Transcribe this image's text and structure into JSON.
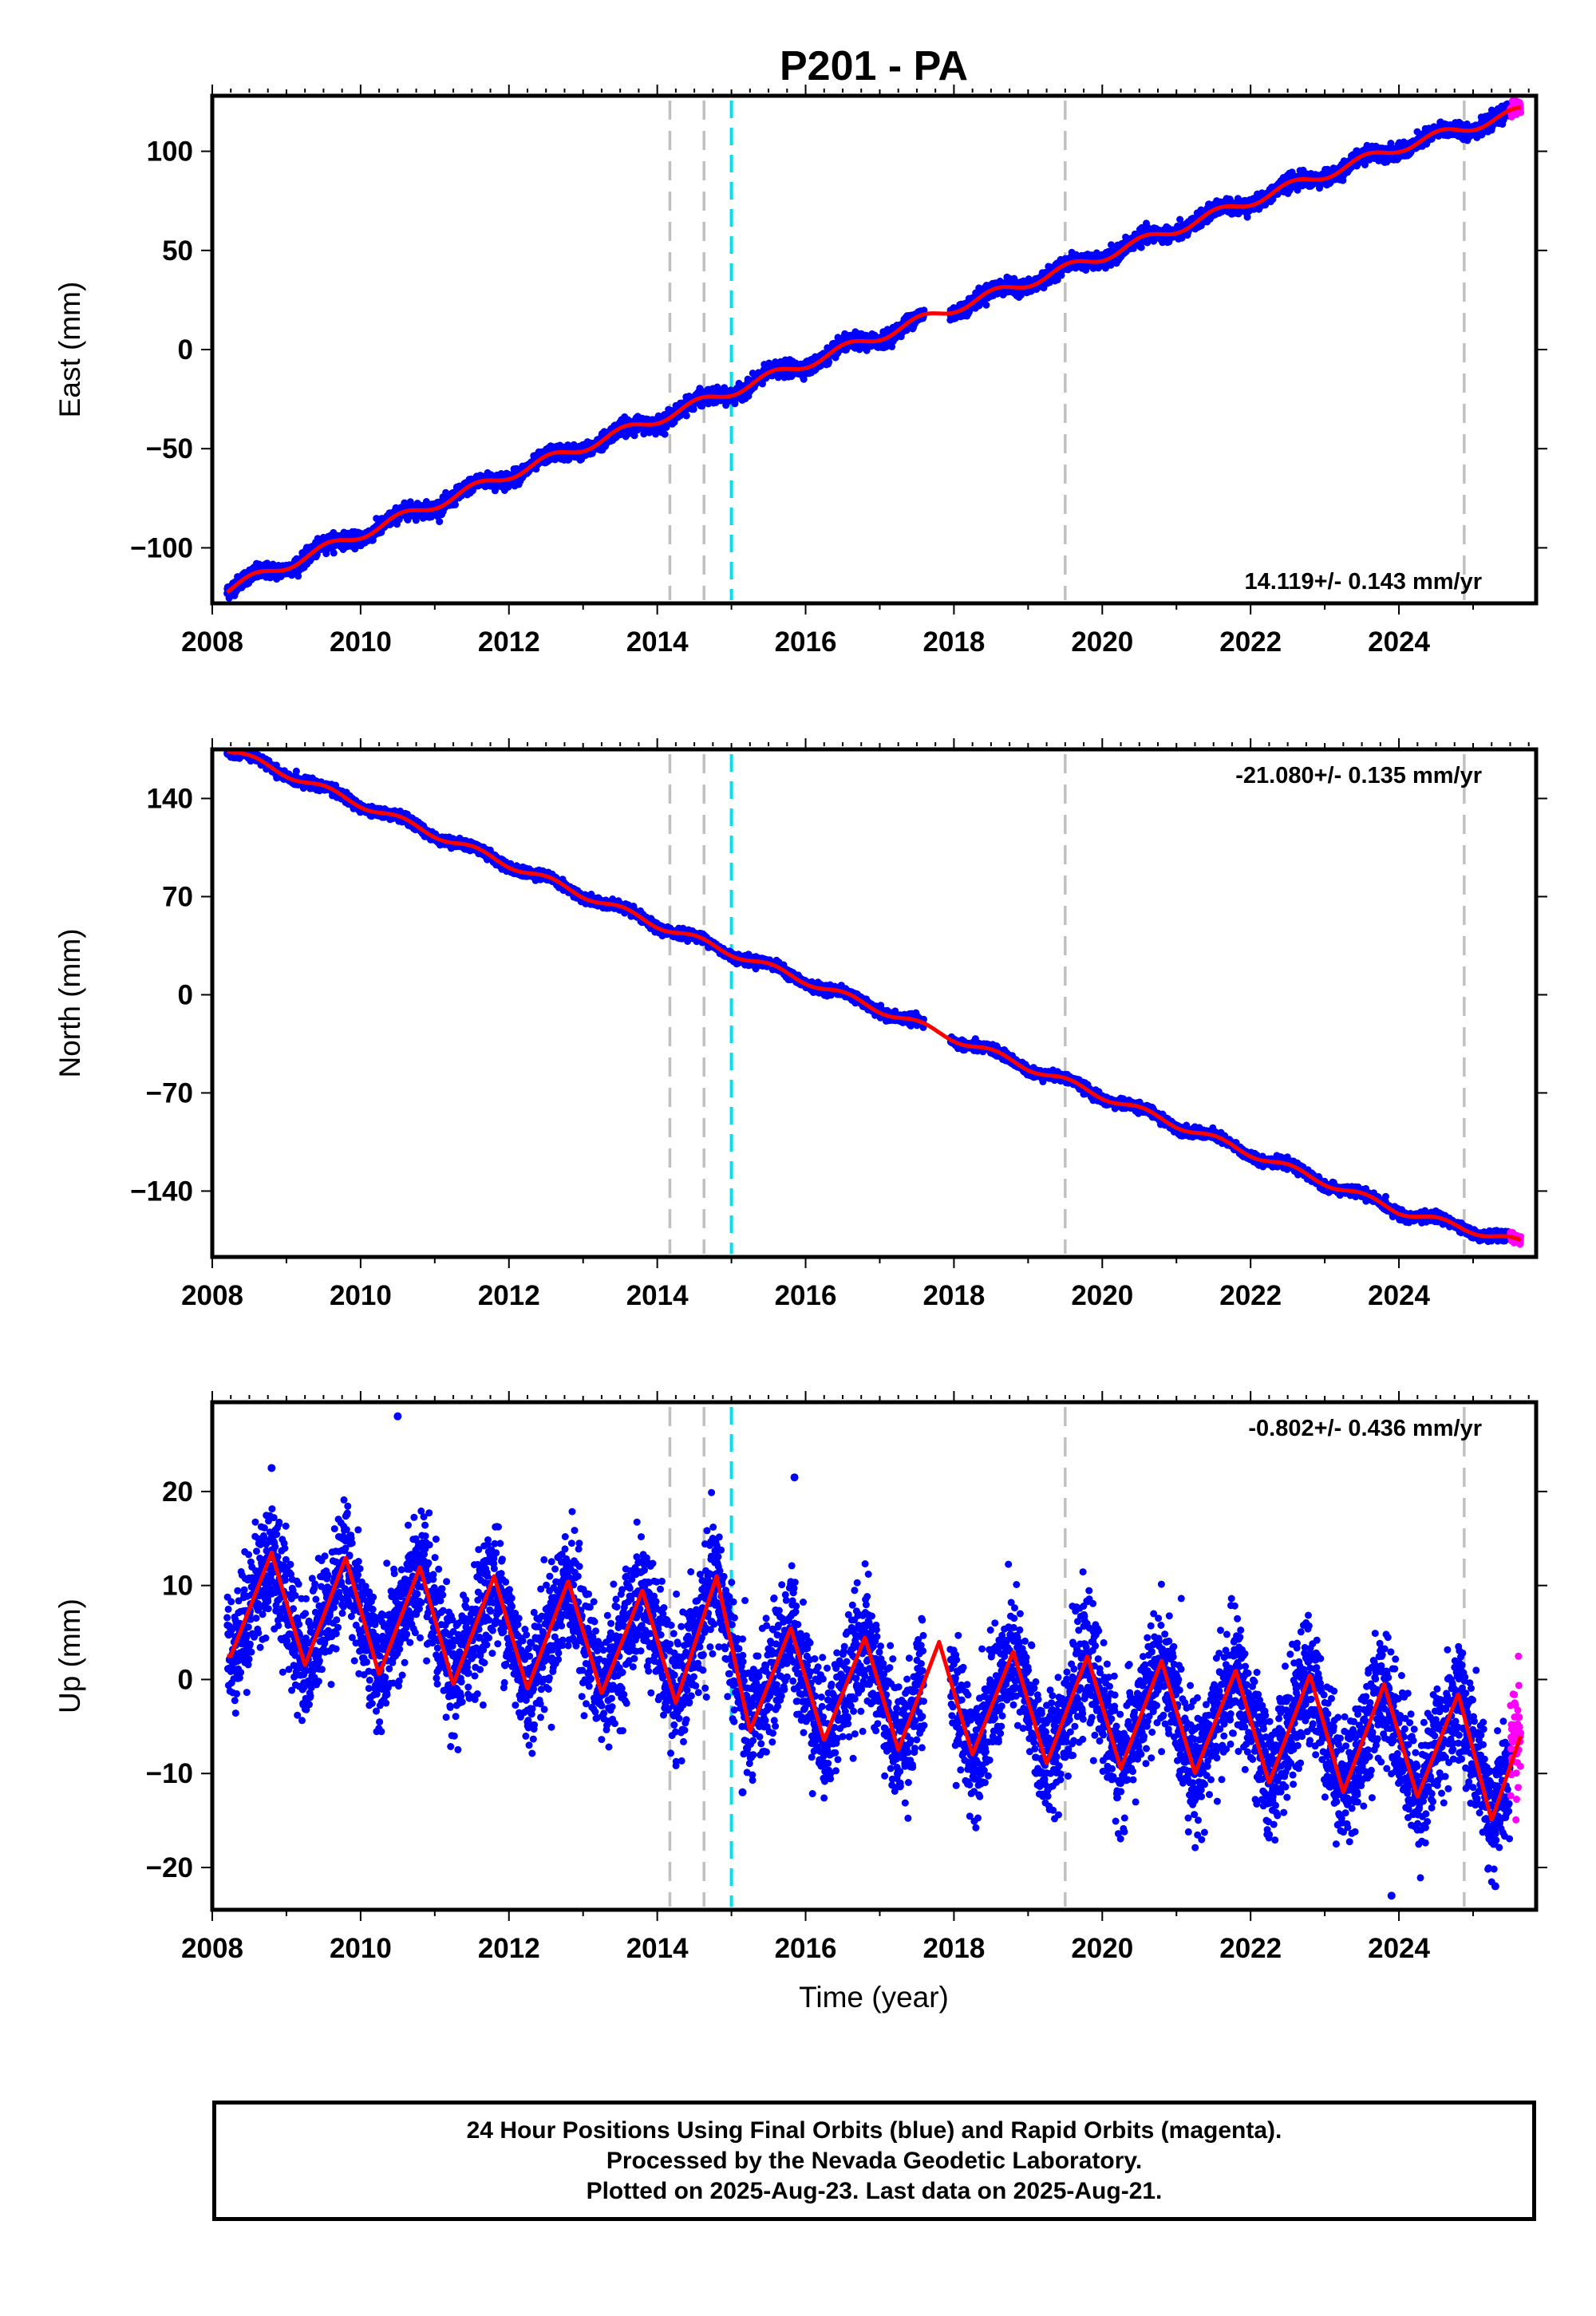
{
  "title": "P201 - PA",
  "x_axis": {
    "label": "Time (year)",
    "range": [
      2008.0,
      2025.85
    ],
    "ticks": [
      "2008",
      "2010",
      "2012",
      "2014",
      "2016",
      "2018",
      "2020",
      "2022",
      "2024"
    ]
  },
  "footer": {
    "line1": "24 Hour Positions Using Final Orbits (blue) and Rapid Orbits (magenta).",
    "line2": "Processed by the Nevada Geodetic Laboratory.",
    "line3": "Plotted on 2025-Aug-23. Last data on 2025-Aug-21."
  },
  "colors": {
    "final_orbits": "#0000ff",
    "rapid_orbits": "#ff00ff",
    "model": "#ff0000",
    "equipment_change": "#c0c0c0",
    "event": "#00e0ee"
  },
  "chart_data": [
    {
      "type": "scatter",
      "component": "east",
      "ylabel": "East (mm)",
      "ylim": [
        -128,
        128
      ],
      "yticks": [
        "100",
        "50",
        "0",
        "−50",
        "−100"
      ],
      "ytick_values": [
        100,
        50,
        0,
        -50,
        -100
      ],
      "rate_label": "14.119+/- 0.143 mm/yr",
      "rate_position": "bottom-right",
      "data_start": 2008.2,
      "data_end": 2025.64,
      "rapid_start": 2025.5,
      "start_value": -121,
      "end_value": 120,
      "annual_amplitude": 2.5,
      "noise": 1.8,
      "gap": [
        2017.6,
        2017.95
      ],
      "fit_series": [
        {
          "x": 2008.2,
          "y": -121
        },
        {
          "x": 2010.0,
          "y": -93
        },
        {
          "x": 2012.0,
          "y": -63
        },
        {
          "x": 2014.0,
          "y": -35
        },
        {
          "x": 2016.0,
          "y": -7
        },
        {
          "x": 2018.0,
          "y": 21
        },
        {
          "x": 2020.0,
          "y": 47
        },
        {
          "x": 2022.0,
          "y": 75
        },
        {
          "x": 2024.0,
          "y": 102
        },
        {
          "x": 2025.64,
          "y": 120
        }
      ]
    },
    {
      "type": "scatter",
      "component": "north",
      "ylabel": "North (mm)",
      "ylim": [
        -187,
        175
      ],
      "yticks": [
        "140",
        "70",
        "0",
        "−70",
        "−140"
      ],
      "ytick_values": [
        140,
        70,
        0,
        -70,
        -140
      ],
      "rate_label": "-21.080+/- 0.135 mm/yr",
      "rate_position": "top-right",
      "data_start": 2008.2,
      "data_end": 2025.64,
      "rapid_start": 2025.5,
      "start_value": 175,
      "end_value": -177,
      "annual_amplitude": 2.5,
      "noise": 1.6,
      "gap": [
        2017.6,
        2017.95
      ],
      "fit_series": [
        {
          "x": 2008.2,
          "y": 175
        },
        {
          "x": 2010.0,
          "y": 136
        },
        {
          "x": 2012.0,
          "y": 93
        },
        {
          "x": 2014.0,
          "y": 50
        },
        {
          "x": 2016.0,
          "y": 10
        },
        {
          "x": 2018.0,
          "y": -31
        },
        {
          "x": 2020.0,
          "y": -72
        },
        {
          "x": 2022.0,
          "y": -113
        },
        {
          "x": 2024.0,
          "y": -154
        },
        {
          "x": 2025.64,
          "y": -177
        }
      ]
    },
    {
      "type": "scatter",
      "component": "up",
      "ylabel": "Up (mm)",
      "ylim": [
        -24.5,
        29.5
      ],
      "yticks": [
        "20",
        "10",
        "0",
        "−10",
        "−20"
      ],
      "ytick_values": [
        20,
        10,
        0,
        -10,
        -20
      ],
      "rate_label": "-0.802+/- 0.436 mm/yr",
      "rate_position": "top-right",
      "data_start": 2008.2,
      "data_end": 2025.64,
      "rapid_start": 2025.5,
      "annual_amplitude": 6.2,
      "annual_peak_fraction": 0.8,
      "noise": 3.2,
      "gap": [
        2017.6,
        2017.95
      ],
      "offset_at_2015": -9,
      "fit_series": [
        {
          "x": 2008.25,
          "y": 2.5
        },
        {
          "x": 2008.8,
          "y": 13.5
        },
        {
          "x": 2009.25,
          "y": 1.5
        },
        {
          "x": 2009.8,
          "y": 13
        },
        {
          "x": 2010.25,
          "y": 0.5
        },
        {
          "x": 2010.8,
          "y": 12
        },
        {
          "x": 2011.25,
          "y": -0.5
        },
        {
          "x": 2011.8,
          "y": 11
        },
        {
          "x": 2012.25,
          "y": -1
        },
        {
          "x": 2012.8,
          "y": 10.5
        },
        {
          "x": 2013.25,
          "y": -1.5
        },
        {
          "x": 2013.8,
          "y": 9.5
        },
        {
          "x": 2014.25,
          "y": -2.5
        },
        {
          "x": 2014.8,
          "y": 11
        },
        {
          "x": 2015.25,
          "y": -5.5
        },
        {
          "x": 2015.8,
          "y": 5.5
        },
        {
          "x": 2016.25,
          "y": -6.5
        },
        {
          "x": 2016.8,
          "y": 4.5
        },
        {
          "x": 2017.25,
          "y": -7.5
        },
        {
          "x": 2017.8,
          "y": 4
        },
        {
          "x": 2018.25,
          "y": -8
        },
        {
          "x": 2018.8,
          "y": 3
        },
        {
          "x": 2019.25,
          "y": -9
        },
        {
          "x": 2019.8,
          "y": 2.5
        },
        {
          "x": 2020.25,
          "y": -9.5
        },
        {
          "x": 2020.8,
          "y": 2
        },
        {
          "x": 2021.25,
          "y": -10
        },
        {
          "x": 2021.8,
          "y": 1
        },
        {
          "x": 2022.25,
          "y": -11
        },
        {
          "x": 2022.8,
          "y": 0.5
        },
        {
          "x": 2023.25,
          "y": -12
        },
        {
          "x": 2023.8,
          "y": -0.5
        },
        {
          "x": 2024.25,
          "y": -12.5
        },
        {
          "x": 2024.8,
          "y": -1.5
        },
        {
          "x": 2025.25,
          "y": -15
        },
        {
          "x": 2025.64,
          "y": -6
        }
      ],
      "outliers": [
        {
          "x": 2010.5,
          "y": 28
        },
        {
          "x": 2008.8,
          "y": 22.5
        },
        {
          "x": 2015.85,
          "y": 21.5
        },
        {
          "x": 2015.15,
          "y": -12
        },
        {
          "x": 2023.9,
          "y": -23
        },
        {
          "x": 2025.3,
          "y": -22
        }
      ]
    }
  ],
  "vertical_markers": [
    {
      "x": 2014.17,
      "kind": "equipment_change"
    },
    {
      "x": 2014.63,
      "kind": "equipment_change"
    },
    {
      "x": 2015.0,
      "kind": "event"
    },
    {
      "x": 2019.5,
      "kind": "equipment_change"
    },
    {
      "x": 2024.88,
      "kind": "equipment_change"
    }
  ]
}
